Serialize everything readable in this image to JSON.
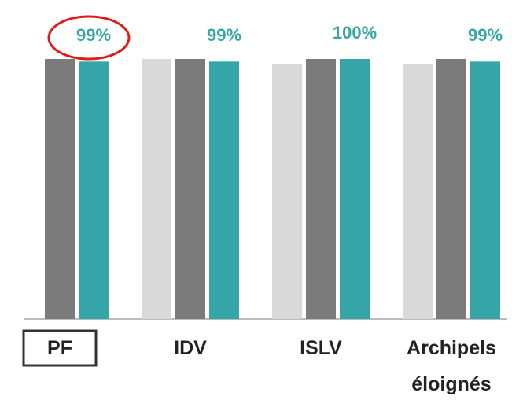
{
  "chart_data": {
    "type": "bar",
    "categories": [
      "PF",
      "IDV",
      "ISLV",
      "Archipels éloignés"
    ],
    "series": [
      {
        "color": "#d9d9d9",
        "values": [
          null,
          100,
          98,
          98
        ]
      },
      {
        "color": "#7b7b7b",
        "values": [
          100,
          100,
          100,
          100
        ]
      },
      {
        "color": "#35a5a7",
        "values": [
          99,
          99,
          100,
          99
        ],
        "value_labels": [
          "99%",
          "99%",
          "100%",
          "99%"
        ]
      }
    ],
    "ylim": [
      0,
      100
    ]
  }
}
